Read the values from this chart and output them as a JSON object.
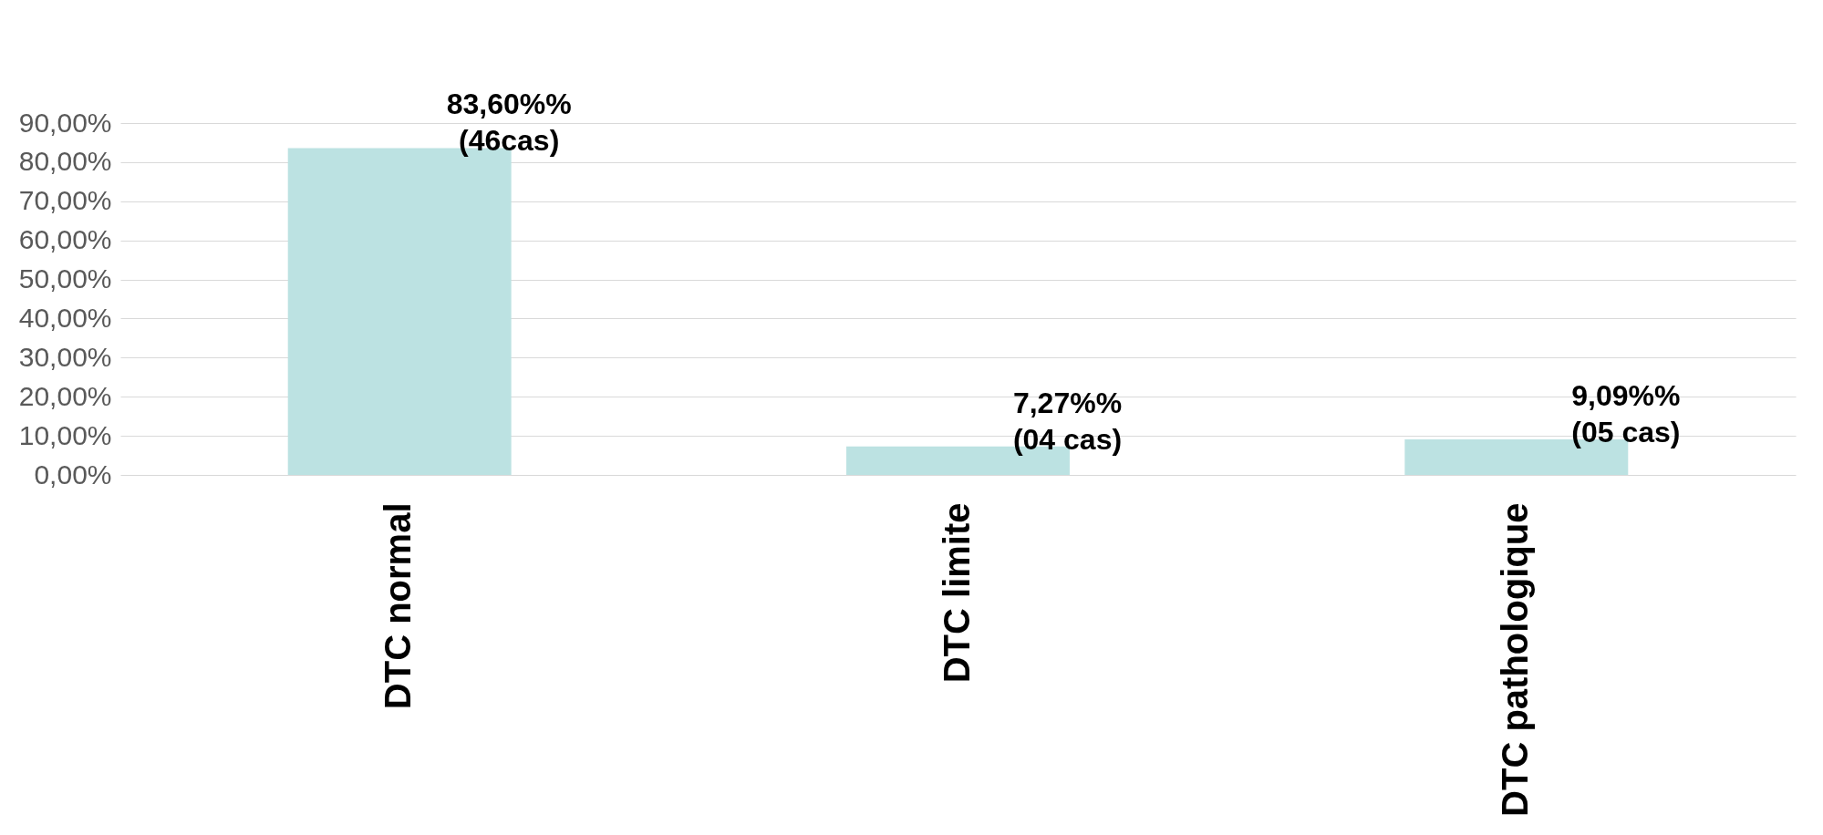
{
  "chart_data": {
    "type": "bar",
    "categories": [
      "DTC normal",
      "DTC limite",
      "DTC pathologique"
    ],
    "values": [
      83.6,
      7.27,
      9.09
    ],
    "color": "#bce2e2",
    "value_labels": [
      "83,60%%\n(46cas)",
      "7,27%%\n(04 cas)",
      "9,09%%\n(05 cas)"
    ],
    "ylim": [
      0,
      90
    ],
    "yticks": [
      {
        "value": 0,
        "label": "0,00%"
      },
      {
        "value": 10,
        "label": "10,00%"
      },
      {
        "value": 20,
        "label": "20,00%"
      },
      {
        "value": 30,
        "label": "30,00%"
      },
      {
        "value": 40,
        "label": "40,00%"
      },
      {
        "value": 50,
        "label": "50,00%"
      },
      {
        "value": 60,
        "label": "60,00%"
      },
      {
        "value": 70,
        "label": "70,00%"
      },
      {
        "value": 80,
        "label": "80,00%"
      },
      {
        "value": 90,
        "label": "90,00%"
      }
    ],
    "grid": "y"
  }
}
